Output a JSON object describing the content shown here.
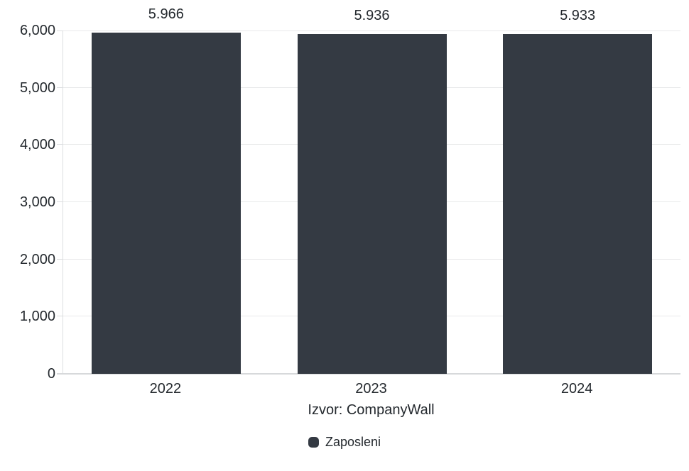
{
  "chart_data": {
    "type": "bar",
    "categories": [
      "2022",
      "2023",
      "2024"
    ],
    "series": [
      {
        "name": "Zaposleni",
        "values": [
          5966,
          5936,
          5933
        ],
        "color": "#343a43"
      }
    ],
    "value_labels": [
      "5.966",
      "5.936",
      "5.933"
    ],
    "title": "",
    "xlabel": "Izvor: CompanyWall",
    "ylabel": "",
    "ylim": [
      0,
      6000
    ],
    "yticks": [
      0,
      1000,
      2000,
      3000,
      4000,
      5000,
      6000
    ],
    "ytick_labels": [
      "0",
      "1,000",
      "2,000",
      "3,000",
      "4,000",
      "5,000",
      "6,000"
    ],
    "grid": true,
    "legend_position": "bottom"
  },
  "source_label": "Izvor: CompanyWall",
  "legend": {
    "items": [
      {
        "label": "Zaposleni",
        "color": "#343a43"
      }
    ]
  },
  "colors": {
    "bar": "#343a43",
    "grid": "#e8e9ea",
    "axis": "#dcdee0",
    "text": "#24292e",
    "background": "#ffffff"
  }
}
